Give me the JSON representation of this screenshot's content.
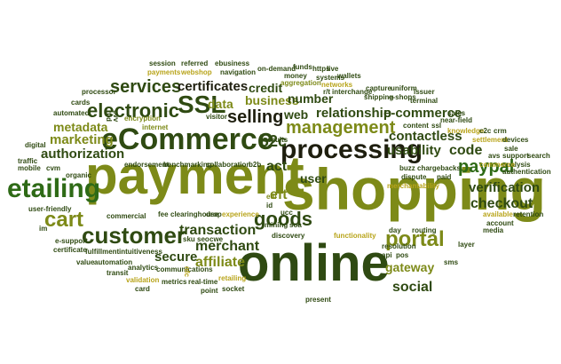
{
  "cloud": {
    "colors": {
      "dark": "#2f4a12",
      "olive": "#7d8a18",
      "gold": "#b8a41a",
      "green": "#2e6a16",
      "black": "#1e1e0e"
    },
    "words": {
      "shopping": "shopping",
      "payment": "payment",
      "online": "online",
      "ecommerce": "eCommerce",
      "etailing": "etailing",
      "customer": "customer",
      "processing": "processing",
      "management": "management",
      "services": "services",
      "ssl": "SSL",
      "electronic": "electronic",
      "selling": "selling",
      "certificates": "certificates",
      "paypal": "paypal",
      "checkout": "checkout",
      "portal": "portal",
      "goods": "goods",
      "cart": "cart",
      "transaction": "transaction",
      "merchant": "merchant",
      "secure": "secure",
      "affiliate": "affiliate",
      "gateway": "gateway",
      "social": "social",
      "authorization": "authorization",
      "marketing": "marketing",
      "metadata": "metadata",
      "relationship": "relationship",
      "e_commerce": "e-commerce",
      "contactless": "contactless",
      "usability": "usability",
      "code": "code",
      "verification": "verification",
      "credit": "credit",
      "business": "business",
      "number": "number",
      "web": "web",
      "b2c": "b2c",
      "act": "act",
      "eft": "eft",
      "user": "user",
      "data": "data",
      "session": "session",
      "payments": "payments",
      "referred": "referred",
      "webshop": "webshop",
      "ebusiness": "ebusiness",
      "navigation": "navigation",
      "on_demand": "on-demand",
      "funds": "funds",
      "https": "https",
      "live": "live",
      "wallets": "wallets",
      "money": "money",
      "aggregation": "aggregation",
      "systems": "systems",
      "networks": "networks",
      "rt": "r/t",
      "interchange": "interchange",
      "capture": "capture",
      "uniform": "uniform",
      "issuer": "issuer",
      "shipping": "shipping",
      "e_shops": "e-shops",
      "terminal": "terminal",
      "processor": "processor",
      "cards": "cards",
      "automated": "automated",
      "cvv": "cvv",
      "rfid": "rfid",
      "digital": "digital",
      "traffic": "traffic",
      "mobile": "mobile",
      "cvm": "cvm",
      "organic": "organic",
      "encryption": "encryption",
      "fulfillment": "fulfillment",
      "internet": "internet",
      "visitor": "visitor",
      "endorsement": "endorsement",
      "benchmarking": "benchmarking",
      "collaboration": "collaboration",
      "b2b": "b2b",
      "results": "results",
      "content": "content",
      "ssl_small": "ssl",
      "sales": "sales",
      "near_field": "near-field",
      "knowledge": "knowledge",
      "c2c": "c2c",
      "crm": "crm",
      "settlement": "settlement",
      "devices": "devices",
      "sale": "sale",
      "search": "search",
      "support": "support",
      "analysis": "analysis",
      "avs": "avs",
      "commerce": "commerce",
      "authentication": "authentication",
      "buzz": "buzz",
      "chargebacks": "chargebacks",
      "dispute": "dispute",
      "paid": "paid",
      "merchantability": "merchantability",
      "available": "available",
      "retention": "retention",
      "account": "account",
      "media": "media",
      "user_friendly": "user-friendly",
      "im": "im",
      "e_support": "e-support",
      "certificate": "certificate",
      "value": "value",
      "automation": "automation",
      "intuitiveness": "intuitiveness",
      "commercial": "commercial",
      "fee": "fee",
      "clearinghouse": "clearinghouse",
      "drop": "drop",
      "experience": "experience",
      "sku": "sku",
      "seo": "seo",
      "cwe": "cwe",
      "edi": "edi",
      "id": "id",
      "ucc": "ucc",
      "mining": "mining",
      "soa": "soa",
      "discovery": "discovery",
      "functionality": "functionality",
      "day": "day",
      "resolution": "resolution",
      "api": "api",
      "pos": "pos",
      "routing": "routing",
      "layer": "layer",
      "sms": "sms",
      "transit": "transit",
      "analytics": "analytics",
      "card": "card",
      "validation": "validation",
      "communications": "communications",
      "metrics": "metrics",
      "real_time": "real-time",
      "retailing": "retailing",
      "point": "point",
      "socket": "socket",
      "present": "present",
      "nfc": "nfc"
    }
  }
}
